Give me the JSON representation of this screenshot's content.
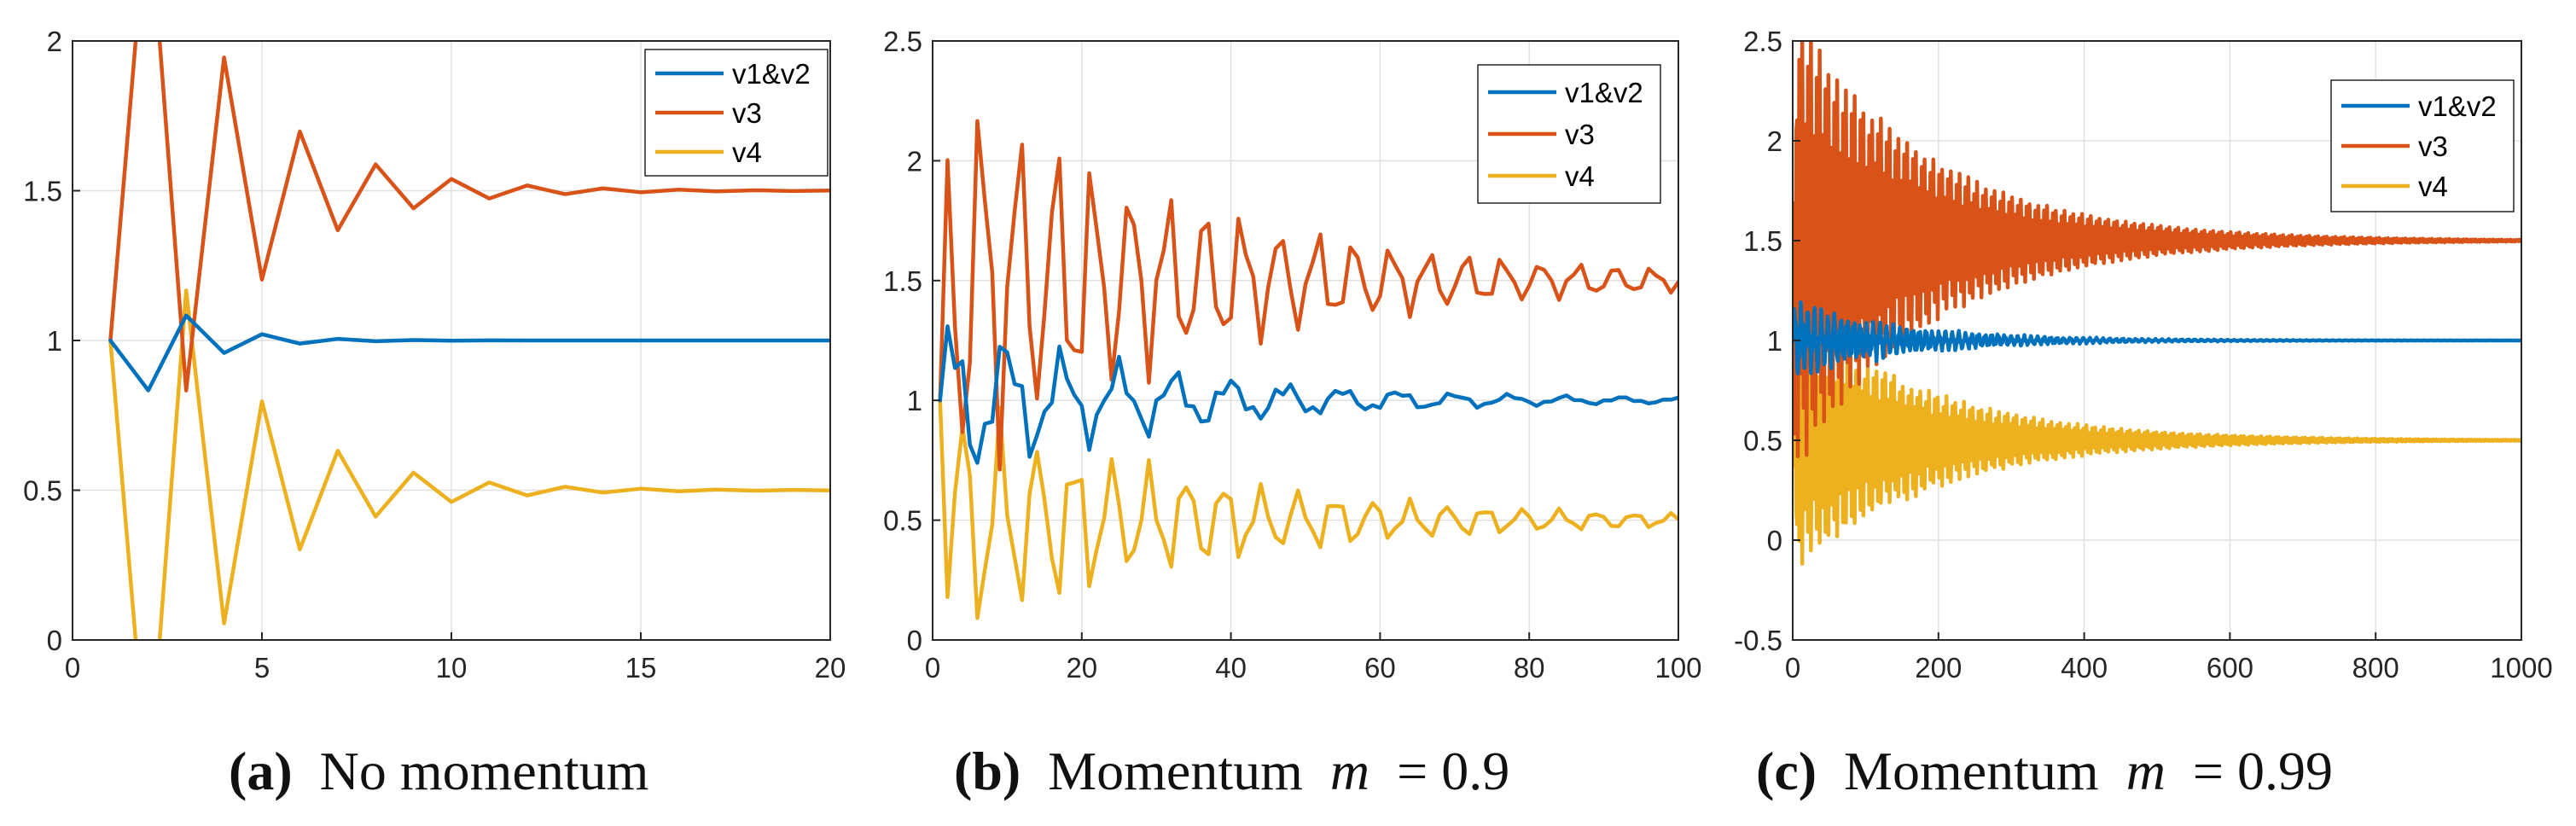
{
  "colors": {
    "v1v2": "#0072BD",
    "v3": "#D95319",
    "v4": "#EDB120"
  },
  "captions": [
    {
      "letter": "(a)",
      "text": "No momentum",
      "m_symbol": "",
      "m_value": ""
    },
    {
      "letter": "(b)",
      "text": "Momentum",
      "m_symbol": "m",
      "m_value": "= 0.9"
    },
    {
      "letter": "(c)",
      "text": "Momentum",
      "m_symbol": "m",
      "m_value": "= 0.99"
    }
  ],
  "chart_data": [
    {
      "type": "line",
      "title": "",
      "xlabel": "",
      "ylabel": "",
      "xlim": [
        0,
        20
      ],
      "ylim": [
        0,
        2
      ],
      "xticks": [
        "0",
        "5",
        "10",
        "15",
        "20"
      ],
      "yticks": [
        "0",
        "0.5",
        "1",
        "1.5",
        "2"
      ],
      "grid": true,
      "legend_position": "top-right",
      "series": [
        {
          "name": "v1&v2",
          "color_key": "v1v2",
          "generator": "first",
          "start": 1.0,
          "target": 1.0,
          "amplitude": -0.1667,
          "ratio": -0.5,
          "period": 1,
          "n": 20,
          "x_start": 1,
          "x_step": 1
        },
        {
          "name": "v3",
          "color_key": "v3",
          "generator": "first",
          "start": 1.0,
          "target": 1.5,
          "amplitude": 1.0,
          "ratio": -0.667,
          "period": 1,
          "n": 20,
          "x_start": 1,
          "x_step": 1
        },
        {
          "name": "v4",
          "color_key": "v4",
          "generator": "first",
          "start": 1.0,
          "target": 0.5,
          "amplitude": -1.0,
          "ratio": -0.667,
          "period": 1,
          "n": 20,
          "x_start": 1,
          "x_step": 1
        }
      ]
    },
    {
      "type": "line",
      "title": "",
      "xlabel": "",
      "ylabel": "",
      "xlim": [
        0,
        100
      ],
      "ylim": [
        0,
        2.5
      ],
      "xticks": [
        "0",
        "20",
        "40",
        "60",
        "80",
        "100"
      ],
      "yticks": [
        "0",
        "0.5",
        "1",
        "1.5",
        "2",
        "2.5"
      ],
      "grid": true,
      "legend_position": "top-right",
      "series": [
        {
          "name": "v1&v2",
          "color_key": "v1v2",
          "generator": "osc",
          "start": 1.0,
          "target": 1.0,
          "amplitude": 0.28,
          "decay": 0.035,
          "period": 7.5,
          "phase": 0.4,
          "period2": 2.6,
          "mix": 0.45,
          "noise": 0.02,
          "n": 100,
          "x_start": 1,
          "x_step": 1
        },
        {
          "name": "v3",
          "color_key": "v3",
          "generator": "osc",
          "start": 1.0,
          "target": 1.5,
          "amplitude": 0.75,
          "decay": 0.03,
          "period": 5.0,
          "phase": 0.9,
          "period2": 2.2,
          "mix": 0.35,
          "noise": 0.02,
          "n": 100,
          "x_start": 1,
          "x_step": 1
        },
        {
          "name": "v4",
          "color_key": "v4",
          "generator": "osc",
          "start": 1.0,
          "target": 0.5,
          "amplitude": -0.44,
          "decay": 0.03,
          "period": 5.0,
          "phase": 0.9,
          "period2": 2.2,
          "mix": 0.35,
          "noise": 0.02,
          "n": 100,
          "x_start": 1,
          "x_step": 1
        }
      ]
    },
    {
      "type": "line",
      "title": "",
      "xlabel": "",
      "ylabel": "",
      "xlim": [
        0,
        1000
      ],
      "ylim": [
        -0.5,
        2.5
      ],
      "xticks": [
        "0",
        "200",
        "400",
        "600",
        "800",
        "1000"
      ],
      "yticks": [
        "-0.5",
        "0",
        "0.5",
        "1",
        "1.5",
        "2",
        "2.5"
      ],
      "grid": true,
      "legend_position": "top-right",
      "series": [
        {
          "name": "v1&v2",
          "color_key": "v1v2",
          "generator": "osc",
          "start": 1.0,
          "target": 1.0,
          "amplitude": 0.14,
          "decay": 0.0065,
          "period": 9.0,
          "phase": 0.3,
          "period2": 3.1,
          "mix": 0.4,
          "noise": 0.03,
          "n": 1000,
          "x_start": 1,
          "x_step": 1
        },
        {
          "name": "v3",
          "color_key": "v3",
          "generator": "osc",
          "start": 1.0,
          "target": 1.5,
          "amplitude": 0.95,
          "decay": 0.0055,
          "period": 4.0,
          "phase": 1.2,
          "period2": 2.4,
          "mix": 0.35,
          "noise": 0.06,
          "n": 1000,
          "x_start": 1,
          "x_step": 1
        },
        {
          "name": "v4",
          "color_key": "v4",
          "generator": "osc",
          "start": 1.0,
          "target": 0.5,
          "amplitude": -0.55,
          "decay": 0.0055,
          "period": 4.0,
          "phase": 1.2,
          "period2": 2.4,
          "mix": 0.35,
          "noise": 0.05,
          "n": 1000,
          "x_start": 1,
          "x_step": 1
        }
      ]
    }
  ]
}
